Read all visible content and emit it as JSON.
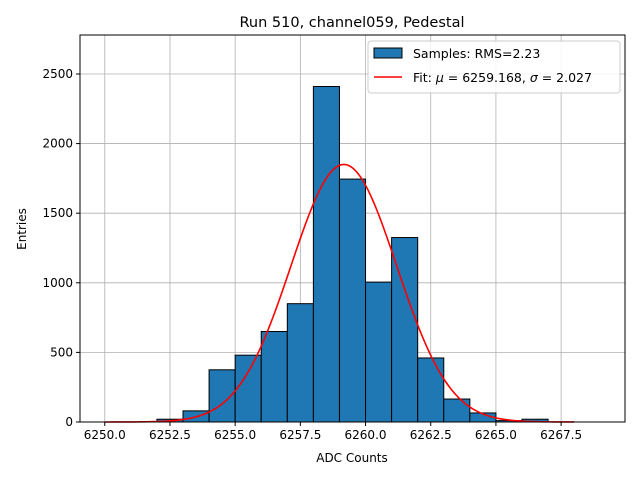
{
  "chart_data": {
    "type": "bar",
    "title": "Run 510, channel059, Pedestal",
    "xlabel": "ADC Counts",
    "ylabel": "Entries",
    "xlim": [
      6249.05,
      6269.95
    ],
    "ylim": [
      0,
      2780
    ],
    "grid": true,
    "legend_position": "top-right",
    "x_ticks": [
      6250.0,
      6252.5,
      6255.0,
      6257.5,
      6260.0,
      6262.5,
      6265.0,
      6267.5
    ],
    "x_tick_labels": [
      "6250.0",
      "6252.5",
      "6255.0",
      "6257.5",
      "6260.0",
      "6262.5",
      "6265.0",
      "6267.5"
    ],
    "y_ticks": [
      0,
      500,
      1000,
      1500,
      2000,
      2500
    ],
    "y_tick_labels": [
      "0",
      "500",
      "1000",
      "1500",
      "2000",
      "2500"
    ],
    "histogram": {
      "name": "Samples: RMS=2.23",
      "color": "#1f77b4",
      "edge_color": "#000000",
      "bin_edges": [
        6250,
        6251,
        6252,
        6253,
        6254,
        6255,
        6256,
        6257,
        6258,
        6259,
        6260,
        6261,
        6262,
        6263,
        6264,
        6265,
        6266,
        6267,
        6268,
        6269
      ],
      "counts": [
        0,
        0,
        20,
        80,
        375,
        480,
        650,
        850,
        2410,
        1745,
        1005,
        1325,
        460,
        165,
        65,
        10,
        20,
        0,
        0
      ]
    },
    "fit": {
      "name": "Fit: μ = 6259.168, σ = 2.027",
      "label_parts": {
        "prefix": "Fit: ",
        "mu_symbol": "μ",
        "mu_text": " = 6259.168, ",
        "sigma_symbol": "σ",
        "sigma_text": " = 2.027"
      },
      "color": "#ff0000",
      "mu": 6259.168,
      "sigma": 2.027,
      "amplitude": 1850,
      "x_range": [
        6250.0,
        6268.0
      ]
    }
  }
}
